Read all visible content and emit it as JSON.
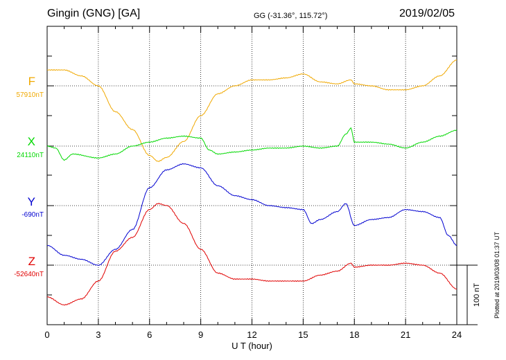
{
  "header": {
    "station": "Gingin (GNG)  [GA]",
    "coords": "GG (-31.36°, 115.72°)",
    "date": "2019/02/05"
  },
  "footer": {
    "plotted": "Plotted at 2019/03/08 01:37 UT"
  },
  "chart_data": {
    "type": "line",
    "xlabel": "U T (hour)",
    "xlim": [
      0,
      24
    ],
    "xticks": [
      "0",
      "3",
      "6",
      "9",
      "12",
      "15",
      "18",
      "21",
      "24"
    ],
    "scale_bar_label": "100 nT",
    "scale_bar_nT": 100,
    "grid": true,
    "series": [
      {
        "name": "F",
        "baseline_label": "57910nT",
        "baseline_nT": 57910,
        "color": "#f0a800",
        "x": [
          0,
          1,
          2,
          3,
          4,
          5,
          6,
          6.5,
          7,
          8,
          9,
          10,
          11,
          12,
          13,
          14,
          15,
          16,
          17,
          17.8,
          18,
          19,
          20,
          21,
          22,
          23,
          24
        ],
        "y": [
          57918,
          57918,
          57915,
          57910,
          57897,
          57888,
          57875,
          57872,
          57874,
          57882,
          57895,
          57906,
          57910,
          57913,
          57913,
          57914,
          57916,
          57912,
          57911,
          57913,
          57911,
          57910,
          57908,
          57908,
          57910,
          57915,
          57923
        ]
      },
      {
        "name": "X",
        "baseline_label": "24110nT",
        "baseline_nT": 24110,
        "color": "#00d800",
        "x": [
          0,
          0.5,
          1,
          1.5,
          3,
          4,
          5,
          6,
          7,
          8,
          9,
          9.5,
          10,
          11,
          12,
          13,
          14,
          15,
          16,
          17,
          17.5,
          17.8,
          18,
          19,
          20,
          21,
          22,
          23,
          24
        ],
        "y": [
          24110,
          24109,
          24103,
          24106,
          24104,
          24106,
          24110,
          24112,
          24114,
          24115,
          24114,
          24108,
          24106,
          24107,
          24108,
          24109,
          24109,
          24110,
          24109,
          24110,
          24116,
          24119,
          24112,
          24112,
          24111,
          24109,
          24112,
          24115,
          24118
        ]
      },
      {
        "name": "Y",
        "baseline_label": "-690nT",
        "baseline_nT": -690,
        "color": "#0000d0",
        "x": [
          0,
          1,
          2,
          3,
          4,
          5,
          6,
          7,
          8,
          9,
          10,
          11,
          12,
          13,
          14,
          15,
          15.5,
          16,
          17,
          17.5,
          18,
          19,
          20,
          21,
          22,
          23,
          23.5,
          24
        ],
        "y": [
          -710,
          -715,
          -717,
          -720,
          -712,
          -702,
          -681,
          -672,
          -669,
          -671,
          -680,
          -685,
          -687,
          -690,
          -691,
          -692,
          -699,
          -697,
          -693,
          -689,
          -700,
          -697,
          -696,
          -692,
          -693,
          -696,
          -705,
          -710
        ]
      },
      {
        "name": "Z",
        "baseline_label": "-52640nT",
        "baseline_nT": -52640,
        "color": "#e00000",
        "x": [
          0,
          1,
          2,
          3,
          4,
          5,
          6,
          6.5,
          7,
          8,
          9,
          10,
          11,
          12,
          13,
          14,
          15,
          16,
          17,
          17.8,
          18,
          19,
          20,
          21,
          22,
          23,
          24
        ],
        "y": [
          -52656,
          -52660,
          -52657,
          -52648,
          -52633,
          -52626,
          -52612,
          -52609,
          -52610,
          -52619,
          -52632,
          -52644,
          -52647,
          -52647,
          -52648,
          -52648,
          -52648,
          -52645,
          -52643,
          -52639,
          -52641,
          -52640,
          -52640,
          -52639,
          -52640,
          -52644,
          -52652
        ]
      }
    ]
  }
}
